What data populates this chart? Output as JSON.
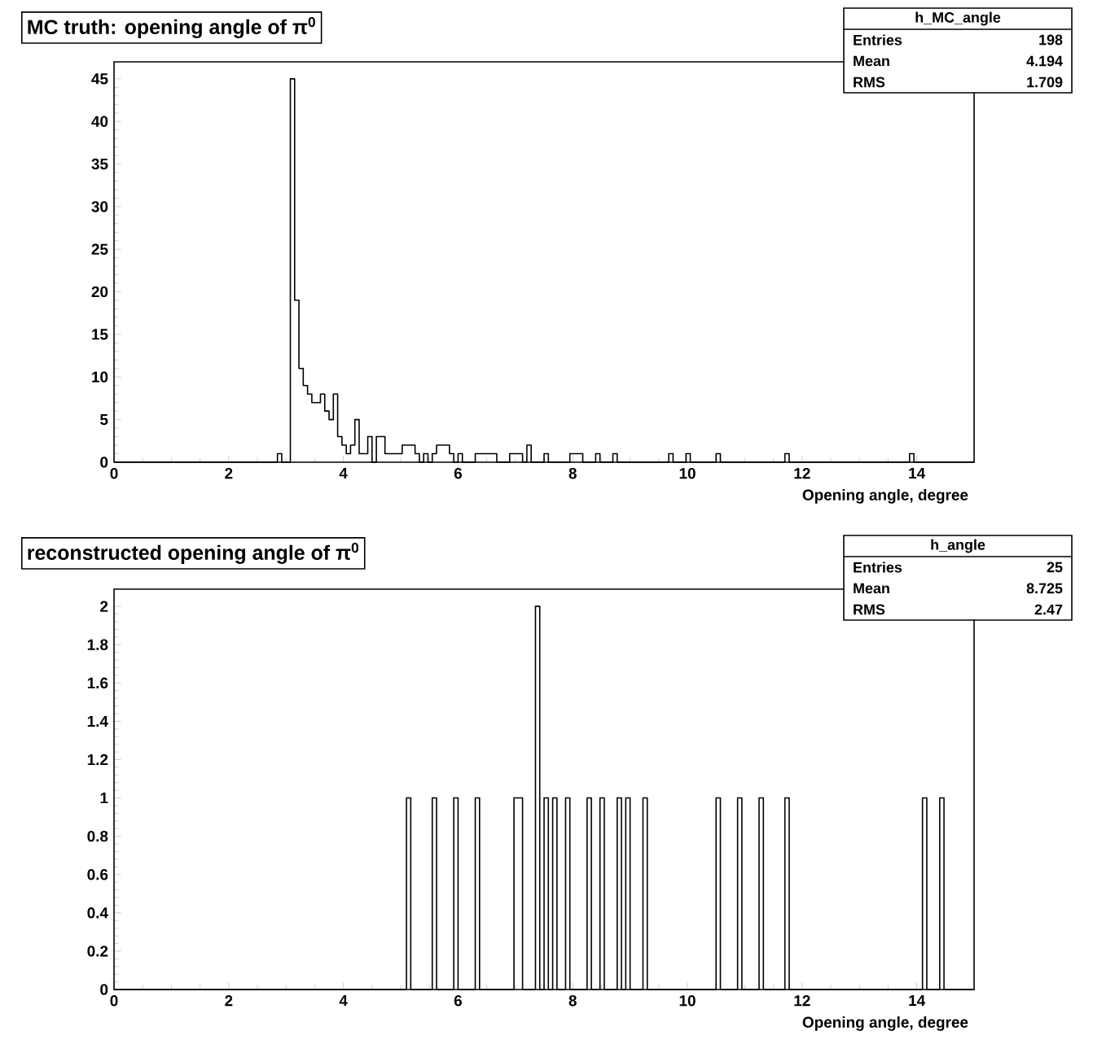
{
  "chart_data": [
    {
      "type": "histogram",
      "title": "MC truth: opening angle of π$^{0}$",
      "xlabel": "Opening angle, degree",
      "color": "#000000",
      "bins": [
        0,
        0.075,
        0.15,
        0.225,
        0.3,
        0.375,
        0.45,
        0.525,
        0.6,
        0.675,
        0.75,
        0.825,
        0.9,
        0.975,
        1.05,
        1.125,
        1.2,
        1.275,
        1.35,
        1.425,
        1.5,
        1.575,
        1.65,
        1.725,
        1.8,
        1.875,
        1.95,
        2.025,
        2.1,
        2.175,
        2.25,
        2.325,
        2.4,
        2.475,
        2.55,
        2.625,
        2.7,
        2.775,
        2.85,
        2.925,
        3,
        3.075,
        3.15,
        3.225,
        3.3,
        3.375,
        3.45,
        3.525,
        3.6,
        3.675,
        3.75,
        3.825,
        3.9,
        3.975,
        4.05,
        4.125,
        4.2,
        4.275,
        4.35,
        4.425,
        4.5,
        4.575,
        4.65,
        4.725,
        4.8,
        4.875,
        4.95,
        5.025,
        5.1,
        5.175,
        5.25,
        5.325,
        5.4,
        5.475,
        5.55,
        5.625,
        5.7,
        5.775,
        5.85,
        5.925,
        6,
        6.075,
        6.15,
        6.225,
        6.3,
        6.375,
        6.45,
        6.525,
        6.6,
        6.675,
        6.75,
        6.825,
        6.9,
        6.975,
        7.05,
        7.125,
        7.2,
        7.275,
        7.35,
        7.425,
        7.5,
        7.575,
        7.65,
        7.725,
        7.8,
        7.875,
        7.95,
        8.025,
        8.1,
        8.175,
        8.25,
        8.325,
        8.4,
        8.475,
        8.55,
        8.625,
        8.7,
        8.775,
        8.85,
        8.925,
        9,
        9.075,
        9.15,
        9.225,
        9.3,
        9.375,
        9.45,
        9.525,
        9.6,
        9.675,
        9.75,
        9.825,
        9.9,
        9.975,
        10.05,
        10.125,
        10.2,
        10.275,
        10.35,
        10.425,
        10.5,
        10.575,
        10.65,
        10.725,
        10.8,
        10.875,
        10.95,
        11.025,
        11.1,
        11.175,
        11.25,
        11.325,
        11.4,
        11.475,
        11.55,
        11.625,
        11.7,
        11.775,
        11.85,
        11.925,
        12,
        12.075,
        12.15,
        12.225,
        12.3,
        12.375,
        12.45,
        12.525,
        12.6,
        12.675,
        12.75,
        12.825,
        12.9,
        12.975,
        13.05,
        13.125,
        13.2,
        13.275,
        13.35,
        13.425,
        13.5,
        13.575,
        13.65,
        13.725,
        13.8,
        13.875,
        13.95,
        14.025,
        14.1,
        14.175,
        14.25,
        14.325,
        14.4,
        14.475,
        14.55,
        14.625,
        14.7,
        14.775,
        14.85,
        14.925,
        15
      ],
      "values": [
        0,
        0,
        0,
        0,
        0,
        0,
        0,
        0,
        0,
        0,
        0,
        0,
        0,
        0,
        0,
        0,
        0,
        0,
        0,
        0,
        0,
        0,
        0,
        0,
        0,
        0,
        0,
        0,
        0,
        0,
        0,
        0,
        0,
        0,
        0,
        0,
        0,
        0,
        1,
        0,
        0,
        45,
        19,
        11,
        9,
        8,
        7,
        7,
        8,
        6,
        5,
        8,
        3,
        2,
        1,
        2,
        5,
        1,
        1,
        3,
        0,
        3,
        3,
        1,
        1,
        1,
        1,
        2,
        2,
        2,
        1,
        0,
        1,
        0,
        1,
        2,
        2,
        2,
        1,
        0,
        1,
        0,
        0,
        0,
        1,
        1,
        1,
        1,
        1,
        0,
        0,
        0,
        1,
        1,
        1,
        0,
        2,
        0,
        0,
        0,
        1,
        0,
        0,
        0,
        0,
        0,
        1,
        1,
        1,
        0,
        0,
        0,
        1,
        0,
        0,
        0,
        1,
        0,
        0,
        0,
        0,
        0,
        0,
        0,
        0,
        0,
        0,
        0,
        0,
        1,
        0,
        0,
        0,
        1,
        0,
        0,
        0,
        0,
        0,
        0,
        1,
        0,
        0,
        0,
        0,
        0,
        0,
        0,
        0,
        0,
        0,
        0,
        0,
        0,
        0,
        0,
        1,
        0,
        0,
        0,
        0,
        0,
        0,
        0,
        0,
        0,
        0,
        0,
        0,
        0,
        0,
        0,
        0,
        0,
        0,
        0,
        0,
        0,
        0,
        0,
        0,
        0,
        0,
        0,
        0,
        1,
        0,
        0,
        0,
        0,
        0,
        0,
        0,
        0,
        0,
        0,
        0,
        0,
        0,
        0
      ],
      "xlim": [
        0,
        15
      ],
      "ylim": [
        0,
        47
      ],
      "xticks": [
        0,
        2,
        4,
        6,
        8,
        10,
        12,
        14
      ],
      "yticks": [
        0,
        5,
        10,
        15,
        20,
        25,
        30,
        35,
        40,
        45
      ],
      "annotations": [
        "h_MC_angle",
        "Entries",
        "198",
        "Mean",
        "4.194",
        "RMS",
        "1.709"
      ]
    },
    {
      "type": "histogram",
      "title": "reconstructed opening angle of π$^{0}$",
      "xlabel": "Opening angle, degree",
      "color": "#000000",
      "bins": [
        0,
        0.075,
        0.15,
        0.225,
        0.3,
        0.375,
        0.45,
        0.525,
        0.6,
        0.675,
        0.75,
        0.825,
        0.9,
        0.975,
        1.05,
        1.125,
        1.2,
        1.275,
        1.35,
        1.425,
        1.5,
        1.575,
        1.65,
        1.725,
        1.8,
        1.875,
        1.95,
        2.025,
        2.1,
        2.175,
        2.25,
        2.325,
        2.4,
        2.475,
        2.55,
        2.625,
        2.7,
        2.775,
        2.85,
        2.925,
        3,
        3.075,
        3.15,
        3.225,
        3.3,
        3.375,
        3.45,
        3.525,
        3.6,
        3.675,
        3.75,
        3.825,
        3.9,
        3.975,
        4.05,
        4.125,
        4.2,
        4.275,
        4.35,
        4.425,
        4.5,
        4.575,
        4.65,
        4.725,
        4.8,
        4.875,
        4.95,
        5.025,
        5.1,
        5.175,
        5.25,
        5.325,
        5.4,
        5.475,
        5.55,
        5.625,
        5.7,
        5.775,
        5.85,
        5.925,
        6,
        6.075,
        6.15,
        6.225,
        6.3,
        6.375,
        6.45,
        6.525,
        6.6,
        6.675,
        6.75,
        6.825,
        6.9,
        6.975,
        7.05,
        7.125,
        7.2,
        7.275,
        7.35,
        7.425,
        7.5,
        7.575,
        7.65,
        7.725,
        7.8,
        7.875,
        7.95,
        8.025,
        8.1,
        8.175,
        8.25,
        8.325,
        8.4,
        8.475,
        8.55,
        8.625,
        8.7,
        8.775,
        8.85,
        8.925,
        9,
        9.075,
        9.15,
        9.225,
        9.3,
        9.375,
        9.45,
        9.525,
        9.6,
        9.675,
        9.75,
        9.825,
        9.9,
        9.975,
        10.05,
        10.125,
        10.2,
        10.275,
        10.35,
        10.425,
        10.5,
        10.575,
        10.65,
        10.725,
        10.8,
        10.875,
        10.95,
        11.025,
        11.1,
        11.175,
        11.25,
        11.325,
        11.4,
        11.475,
        11.55,
        11.625,
        11.7,
        11.775,
        11.85,
        11.925,
        12,
        12.075,
        12.15,
        12.225,
        12.3,
        12.375,
        12.45,
        12.525,
        12.6,
        12.675,
        12.75,
        12.825,
        12.9,
        12.975,
        13.05,
        13.125,
        13.2,
        13.275,
        13.35,
        13.425,
        13.5,
        13.575,
        13.65,
        13.725,
        13.8,
        13.875,
        13.95,
        14.025,
        14.1,
        14.175,
        14.25,
        14.325,
        14.4,
        14.475,
        14.55,
        14.625,
        14.7,
        14.775,
        14.85,
        14.925,
        15
      ],
      "values": [
        0,
        0,
        0,
        0,
        0,
        0,
        0,
        0,
        0,
        0,
        0,
        0,
        0,
        0,
        0,
        0,
        0,
        0,
        0,
        0,
        0,
        0,
        0,
        0,
        0,
        0,
        0,
        0,
        0,
        0,
        0,
        0,
        0,
        0,
        0,
        0,
        0,
        0,
        0,
        0,
        0,
        0,
        0,
        0,
        0,
        0,
        0,
        0,
        0,
        0,
        0,
        0,
        0,
        0,
        0,
        0,
        0,
        0,
        0,
        0,
        0,
        0,
        0,
        0,
        0,
        0,
        0,
        0,
        1,
        0,
        0,
        0,
        0,
        0,
        1,
        0,
        0,
        0,
        0,
        1,
        0,
        0,
        0,
        0,
        1,
        0,
        0,
        0,
        0,
        0,
        0,
        0,
        0,
        1,
        1,
        0,
        0,
        0,
        2,
        0,
        1,
        0,
        1,
        0,
        0,
        1,
        0,
        0,
        0,
        0,
        1,
        0,
        0,
        1,
        0,
        0,
        0,
        1,
        0,
        1,
        0,
        0,
        0,
        1,
        0,
        0,
        0,
        0,
        0,
        0,
        0,
        0,
        0,
        0,
        0,
        0,
        0,
        0,
        0,
        0,
        1,
        0,
        0,
        0,
        0,
        1,
        0,
        0,
        0,
        0,
        1,
        0,
        0,
        0,
        0,
        0,
        1,
        0,
        0,
        0,
        0,
        0,
        0,
        0,
        0,
        0,
        0,
        0,
        0,
        0,
        0,
        0,
        0,
        0,
        0,
        0,
        0,
        0,
        0,
        0,
        0,
        0,
        0,
        0,
        0,
        0,
        0,
        0,
        1,
        0,
        0,
        0,
        1,
        0,
        0,
        0,
        0,
        0,
        0,
        0
      ],
      "xlim": [
        0,
        15
      ],
      "ylim": [
        0,
        2.09
      ],
      "xticks": [
        0,
        2,
        4,
        6,
        8,
        10,
        12,
        14
      ],
      "yticks": [
        0,
        0.2,
        0.4,
        0.6,
        0.8,
        1,
        1.2,
        1.4,
        1.6,
        1.8,
        2
      ],
      "annotations": [
        "h_angle",
        "Entries",
        "25",
        "Mean",
        "8.725",
        "RMS",
        "2.47"
      ]
    }
  ]
}
